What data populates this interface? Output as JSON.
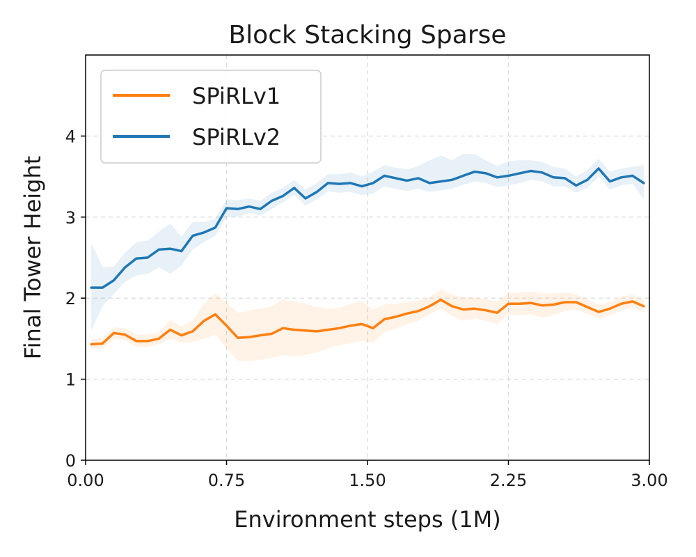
{
  "chart_data": {
    "type": "line",
    "title": "Block Stacking Sparse",
    "xlabel": "Environment steps (1M)",
    "ylabel": "Final Tower Height",
    "xlim": [
      0,
      3.0
    ],
    "ylim": [
      0,
      5.0
    ],
    "xticks": [
      "0.00",
      "0.75",
      "1.50",
      "2.25",
      "3.00"
    ],
    "xtick_values": [
      0,
      0.75,
      1.5,
      2.25,
      3.0
    ],
    "yticks": [
      "0",
      "1",
      "2",
      "3",
      "4"
    ],
    "ytick_values": [
      0,
      1,
      2,
      3,
      4
    ],
    "grid": true,
    "legend_position": "top-left",
    "x": [
      0.03,
      0.09,
      0.15,
      0.21,
      0.27,
      0.33,
      0.39,
      0.45,
      0.51,
      0.57,
      0.63,
      0.69,
      0.75,
      0.81,
      0.87,
      0.93,
      0.99,
      1.05,
      1.11,
      1.17,
      1.23,
      1.29,
      1.35,
      1.41,
      1.47,
      1.53,
      1.59,
      1.65,
      1.71,
      1.77,
      1.83,
      1.89,
      1.95,
      2.01,
      2.07,
      2.13,
      2.19,
      2.25,
      2.31,
      2.37,
      2.43,
      2.49,
      2.55,
      2.61,
      2.67,
      2.73,
      2.79,
      2.85,
      2.91,
      2.97
    ],
    "series": [
      {
        "name": "SPiRLv1",
        "color": "#ff7f0e",
        "values": [
          1.43,
          1.44,
          1.57,
          1.55,
          1.47,
          1.47,
          1.5,
          1.61,
          1.54,
          1.59,
          1.72,
          1.8,
          1.66,
          1.51,
          1.52,
          1.54,
          1.56,
          1.63,
          1.61,
          1.6,
          1.59,
          1.61,
          1.63,
          1.66,
          1.68,
          1.63,
          1.74,
          1.77,
          1.81,
          1.84,
          1.9,
          1.98,
          1.9,
          1.86,
          1.87,
          1.85,
          1.82,
          1.93,
          1.93,
          1.94,
          1.91,
          1.92,
          1.95,
          1.95,
          1.89,
          1.83,
          1.87,
          1.93,
          1.96,
          1.9
        ],
        "lower": [
          1.38,
          1.38,
          1.5,
          1.48,
          1.4,
          1.4,
          1.43,
          1.5,
          1.45,
          1.46,
          1.5,
          1.55,
          1.38,
          1.23,
          1.22,
          1.24,
          1.26,
          1.3,
          1.28,
          1.3,
          1.33,
          1.38,
          1.42,
          1.45,
          1.47,
          1.45,
          1.58,
          1.62,
          1.68,
          1.72,
          1.8,
          1.87,
          1.78,
          1.72,
          1.75,
          1.72,
          1.68,
          1.8,
          1.79,
          1.8,
          1.76,
          1.79,
          1.84,
          1.86,
          1.81,
          1.75,
          1.79,
          1.85,
          1.89,
          1.82
        ],
        "upper": [
          1.49,
          1.51,
          1.64,
          1.63,
          1.55,
          1.55,
          1.58,
          1.73,
          1.65,
          1.73,
          1.93,
          2.06,
          1.95,
          1.82,
          1.85,
          1.87,
          1.9,
          1.98,
          1.96,
          1.93,
          1.89,
          1.87,
          1.88,
          1.93,
          1.96,
          1.86,
          1.92,
          1.93,
          1.95,
          1.97,
          2.01,
          2.11,
          2.04,
          2.01,
          2.01,
          1.99,
          1.96,
          2.06,
          2.07,
          2.08,
          2.06,
          2.06,
          2.07,
          2.05,
          1.98,
          1.92,
          1.95,
          2.02,
          2.04,
          1.99
        ]
      },
      {
        "name": "SPiRLv2",
        "color": "#1f77b4",
        "values": [
          2.13,
          2.13,
          2.22,
          2.38,
          2.49,
          2.5,
          2.6,
          2.61,
          2.58,
          2.77,
          2.81,
          2.87,
          3.11,
          3.1,
          3.13,
          3.1,
          3.2,
          3.26,
          3.36,
          3.23,
          3.31,
          3.42,
          3.41,
          3.42,
          3.38,
          3.42,
          3.51,
          3.48,
          3.45,
          3.48,
          3.42,
          3.44,
          3.46,
          3.51,
          3.56,
          3.54,
          3.49,
          3.51,
          3.54,
          3.57,
          3.55,
          3.49,
          3.48,
          3.39,
          3.46,
          3.6,
          3.44,
          3.49,
          3.51,
          3.42
        ],
        "lower": [
          1.6,
          1.9,
          2.05,
          2.2,
          2.28,
          2.3,
          2.38,
          2.3,
          2.4,
          2.6,
          2.69,
          2.77,
          3.0,
          3.0,
          3.05,
          3.02,
          3.1,
          3.18,
          3.28,
          3.14,
          3.22,
          3.32,
          3.3,
          3.31,
          3.27,
          3.29,
          3.38,
          3.35,
          3.32,
          3.35,
          3.31,
          3.33,
          3.35,
          3.4,
          3.44,
          3.42,
          3.37,
          3.39,
          3.42,
          3.46,
          3.44,
          3.38,
          3.38,
          3.3,
          3.36,
          3.5,
          3.34,
          3.39,
          3.41,
          3.22
        ],
        "upper": [
          2.68,
          2.38,
          2.39,
          2.56,
          2.69,
          2.71,
          2.82,
          2.92,
          2.76,
          2.94,
          2.94,
          2.98,
          3.22,
          3.21,
          3.23,
          3.2,
          3.3,
          3.36,
          3.46,
          3.34,
          3.42,
          3.53,
          3.53,
          3.55,
          3.5,
          3.56,
          3.64,
          3.61,
          3.59,
          3.63,
          3.7,
          3.76,
          3.7,
          3.78,
          3.78,
          3.7,
          3.63,
          3.69,
          3.7,
          3.7,
          3.68,
          3.62,
          3.6,
          3.5,
          3.58,
          3.72,
          3.56,
          3.6,
          3.62,
          3.64
        ]
      }
    ]
  }
}
